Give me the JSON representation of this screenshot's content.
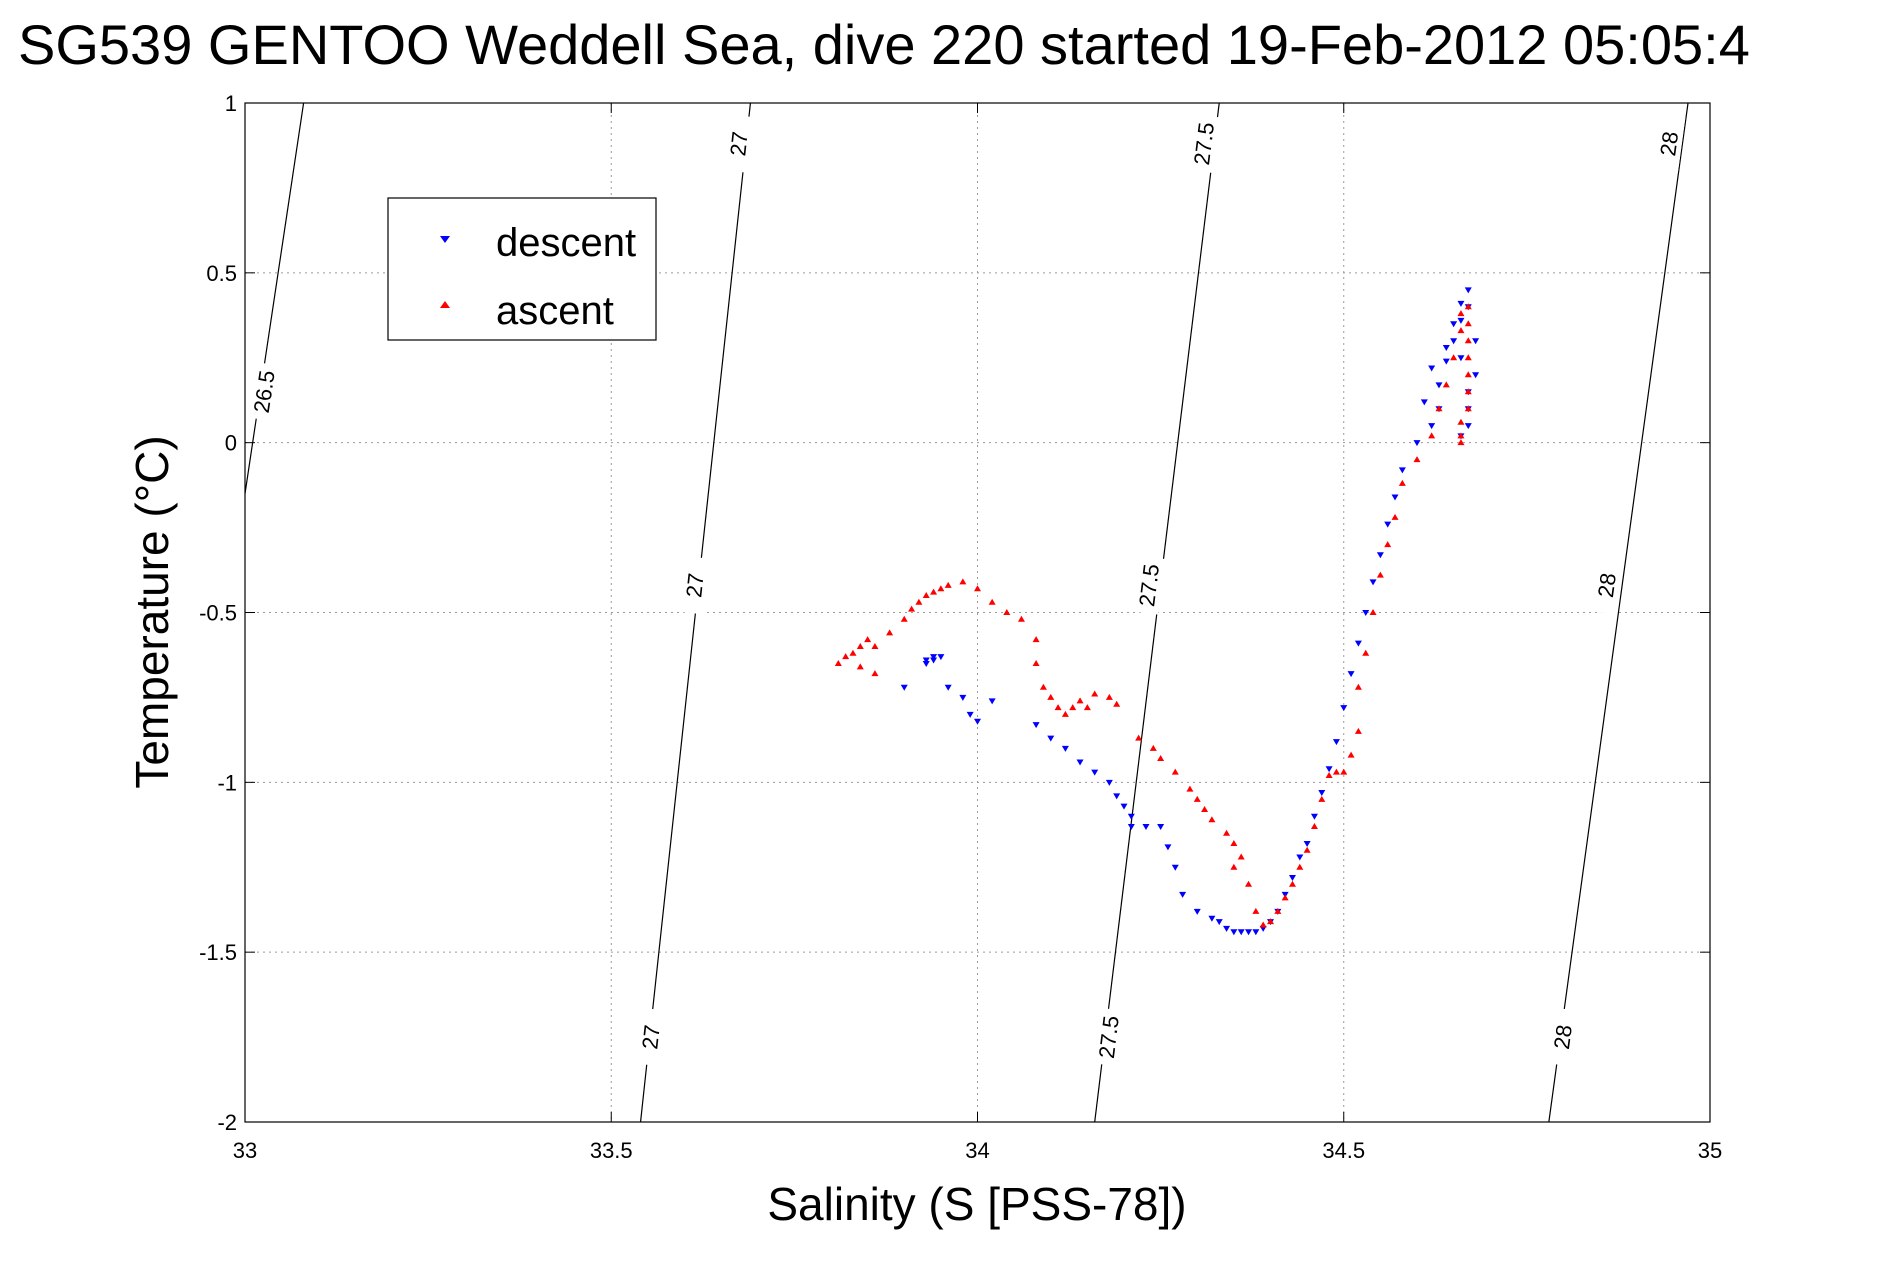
{
  "chart_data": {
    "type": "scatter",
    "title": "SG539 GENTOO Weddell Sea, dive 220 started 19-Feb-2012 05:05:4",
    "xlabel": "Salinity (S [PSS-78])",
    "ylabel": "Temperature (°C)",
    "xlim": [
      33,
      35
    ],
    "ylim": [
      -2,
      1
    ],
    "grid": true,
    "legend": {
      "position": "top-left",
      "entries": [
        "descent",
        "ascent"
      ]
    },
    "x_ticks": [
      "33",
      "33.5",
      "34",
      "34.5",
      "35"
    ],
    "y_ticks": [
      "1",
      "0.5",
      "0",
      "-0.5",
      "-1",
      "-1.5",
      "-2"
    ],
    "x_tick_values": [
      33,
      33.5,
      34,
      34.5,
      35
    ],
    "y_tick_values": [
      1,
      0.5,
      0,
      -0.5,
      -1,
      -1.5,
      -2
    ],
    "contours": [
      {
        "label": "26.5",
        "points": [
          [
            33.0,
            -0.15
          ],
          [
            33.08,
            1.0
          ]
        ],
        "label_positions": [
          [
            33.027,
            0.15
          ]
        ]
      },
      {
        "label": "27",
        "points": [
          [
            33.54,
            -2.0
          ],
          [
            33.69,
            1.0
          ]
        ],
        "label_positions": [
          [
            33.555,
            -1.75
          ],
          [
            33.615,
            -0.42
          ],
          [
            33.675,
            0.88
          ]
        ]
      },
      {
        "label": "27.5",
        "points": [
          [
            34.16,
            -2.0
          ],
          [
            34.33,
            1.0
          ]
        ],
        "label_positions": [
          [
            34.18,
            -1.75
          ],
          [
            34.235,
            -0.42
          ],
          [
            34.31,
            0.88
          ]
        ]
      },
      {
        "label": "28",
        "points": [
          [
            34.78,
            -2.0
          ],
          [
            34.97,
            1.0
          ]
        ],
        "label_positions": [
          [
            34.8,
            -1.75
          ],
          [
            34.86,
            -0.42
          ],
          [
            34.945,
            0.88
          ]
        ]
      }
    ],
    "series": [
      {
        "name": "descent",
        "color": "#0000ff",
        "marker": "triangle-down",
        "points": [
          [
            33.93,
            -0.64
          ],
          [
            33.94,
            -0.63
          ],
          [
            33.95,
            -0.63
          ],
          [
            33.94,
            -0.64
          ],
          [
            33.93,
            -0.65
          ],
          [
            33.9,
            -0.72
          ],
          [
            33.96,
            -0.72
          ],
          [
            33.98,
            -0.75
          ],
          [
            34.02,
            -0.76
          ],
          [
            33.99,
            -0.8
          ],
          [
            34.0,
            -0.82
          ],
          [
            34.08,
            -0.83
          ],
          [
            34.1,
            -0.87
          ],
          [
            34.12,
            -0.9
          ],
          [
            34.14,
            -0.94
          ],
          [
            34.16,
            -0.97
          ],
          [
            34.18,
            -1.0
          ],
          [
            34.19,
            -1.04
          ],
          [
            34.2,
            -1.07
          ],
          [
            34.21,
            -1.1
          ],
          [
            34.21,
            -1.13
          ],
          [
            34.23,
            -1.13
          ],
          [
            34.25,
            -1.13
          ],
          [
            34.26,
            -1.19
          ],
          [
            34.27,
            -1.25
          ],
          [
            34.28,
            -1.33
          ],
          [
            34.3,
            -1.38
          ],
          [
            34.32,
            -1.4
          ],
          [
            34.33,
            -1.41
          ],
          [
            34.34,
            -1.43
          ],
          [
            34.35,
            -1.44
          ],
          [
            34.36,
            -1.44
          ],
          [
            34.37,
            -1.44
          ],
          [
            34.38,
            -1.44
          ],
          [
            34.39,
            -1.43
          ],
          [
            34.4,
            -1.41
          ],
          [
            34.41,
            -1.38
          ],
          [
            34.42,
            -1.33
          ],
          [
            34.43,
            -1.28
          ],
          [
            34.44,
            -1.22
          ],
          [
            34.45,
            -1.18
          ],
          [
            34.46,
            -1.1
          ],
          [
            34.47,
            -1.03
          ],
          [
            34.48,
            -0.96
          ],
          [
            34.49,
            -0.88
          ],
          [
            34.5,
            -0.78
          ],
          [
            34.51,
            -0.68
          ],
          [
            34.52,
            -0.59
          ],
          [
            34.53,
            -0.5
          ],
          [
            34.54,
            -0.41
          ],
          [
            34.55,
            -0.33
          ],
          [
            34.56,
            -0.24
          ],
          [
            34.57,
            -0.16
          ],
          [
            34.58,
            -0.08
          ],
          [
            34.6,
            0.0
          ],
          [
            34.62,
            0.05
          ],
          [
            34.63,
            0.1
          ],
          [
            34.63,
            0.17
          ],
          [
            34.64,
            0.24
          ],
          [
            34.65,
            0.3
          ],
          [
            34.66,
            0.36
          ],
          [
            34.66,
            0.41
          ],
          [
            34.67,
            0.45
          ],
          [
            34.67,
            0.4
          ],
          [
            34.68,
            0.3
          ],
          [
            34.68,
            0.2
          ],
          [
            34.67,
            0.1
          ],
          [
            34.67,
            0.05
          ],
          [
            34.66,
            0.02
          ],
          [
            34.67,
            0.15
          ],
          [
            34.66,
            0.25
          ],
          [
            34.65,
            0.35
          ],
          [
            34.64,
            0.28
          ],
          [
            34.62,
            0.22
          ],
          [
            34.61,
            0.12
          ]
        ]
      },
      {
        "name": "ascent",
        "color": "#ff0000",
        "marker": "triangle-up",
        "points": [
          [
            33.81,
            -0.65
          ],
          [
            33.82,
            -0.63
          ],
          [
            33.83,
            -0.62
          ],
          [
            33.84,
            -0.6
          ],
          [
            33.85,
            -0.58
          ],
          [
            33.86,
            -0.6
          ],
          [
            33.84,
            -0.66
          ],
          [
            33.86,
            -0.68
          ],
          [
            33.88,
            -0.56
          ],
          [
            33.9,
            -0.52
          ],
          [
            33.91,
            -0.49
          ],
          [
            33.92,
            -0.47
          ],
          [
            33.93,
            -0.45
          ],
          [
            33.94,
            -0.44
          ],
          [
            33.95,
            -0.43
          ],
          [
            33.96,
            -0.42
          ],
          [
            33.98,
            -0.41
          ],
          [
            34.0,
            -0.43
          ],
          [
            34.02,
            -0.47
          ],
          [
            34.04,
            -0.5
          ],
          [
            34.06,
            -0.52
          ],
          [
            34.08,
            -0.58
          ],
          [
            34.08,
            -0.65
          ],
          [
            34.09,
            -0.72
          ],
          [
            34.1,
            -0.75
          ],
          [
            34.11,
            -0.78
          ],
          [
            34.12,
            -0.8
          ],
          [
            34.13,
            -0.78
          ],
          [
            34.14,
            -0.76
          ],
          [
            34.15,
            -0.78
          ],
          [
            34.16,
            -0.74
          ],
          [
            34.18,
            -0.75
          ],
          [
            34.19,
            -0.77
          ],
          [
            34.22,
            -0.87
          ],
          [
            34.24,
            -0.9
          ],
          [
            34.25,
            -0.93
          ],
          [
            34.27,
            -0.97
          ],
          [
            34.29,
            -1.02
          ],
          [
            34.3,
            -1.05
          ],
          [
            34.31,
            -1.08
          ],
          [
            34.32,
            -1.11
          ],
          [
            34.34,
            -1.15
          ],
          [
            34.35,
            -1.18
          ],
          [
            34.36,
            -1.22
          ],
          [
            34.35,
            -1.25
          ],
          [
            34.37,
            -1.3
          ],
          [
            34.38,
            -1.38
          ],
          [
            34.39,
            -1.42
          ],
          [
            34.4,
            -1.41
          ],
          [
            34.41,
            -1.38
          ],
          [
            34.42,
            -1.34
          ],
          [
            34.43,
            -1.3
          ],
          [
            34.44,
            -1.25
          ],
          [
            34.45,
            -1.2
          ],
          [
            34.46,
            -1.13
          ],
          [
            34.47,
            -1.05
          ],
          [
            34.48,
            -0.98
          ],
          [
            34.49,
            -0.97
          ],
          [
            34.5,
            -0.97
          ],
          [
            34.51,
            -0.92
          ],
          [
            34.52,
            -0.85
          ],
          [
            34.52,
            -0.72
          ],
          [
            34.53,
            -0.62
          ],
          [
            34.54,
            -0.5
          ],
          [
            34.55,
            -0.39
          ],
          [
            34.56,
            -0.3
          ],
          [
            34.57,
            -0.22
          ],
          [
            34.58,
            -0.12
          ],
          [
            34.6,
            -0.05
          ],
          [
            34.62,
            0.02
          ],
          [
            34.63,
            0.1
          ],
          [
            34.64,
            0.17
          ],
          [
            34.65,
            0.25
          ],
          [
            34.66,
            0.33
          ],
          [
            34.66,
            0.38
          ],
          [
            34.67,
            0.4
          ],
          [
            34.67,
            0.35
          ],
          [
            34.67,
            0.3
          ],
          [
            34.67,
            0.25
          ],
          [
            34.67,
            0.2
          ],
          [
            34.67,
            0.15
          ],
          [
            34.67,
            0.1
          ],
          [
            34.66,
            0.06
          ],
          [
            34.66,
            0.02
          ],
          [
            34.66,
            0.0
          ]
        ]
      }
    ]
  }
}
